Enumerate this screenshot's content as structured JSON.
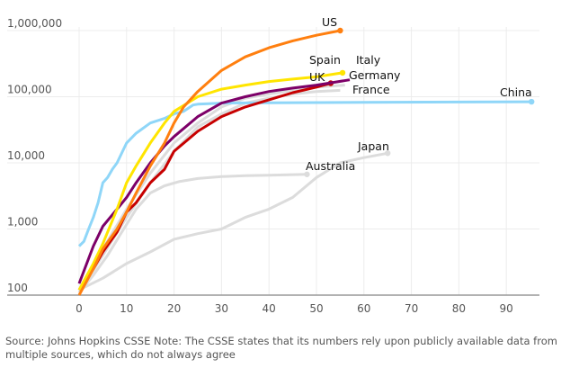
{
  "chart_data": {
    "type": "line",
    "title": "",
    "xlabel": "",
    "ylabel": "",
    "xlim": [
      -3,
      96
    ],
    "ylim": [
      100,
      1000000
    ],
    "y_scale": "log",
    "x_ticks": [
      0,
      10,
      20,
      30,
      40,
      50,
      60,
      70,
      80,
      90
    ],
    "y_ticks": [
      {
        "v": 100,
        "label": "100"
      },
      {
        "v": 1000,
        "label": "1,000"
      },
      {
        "v": 10000,
        "label": "10,000"
      },
      {
        "v": 100000,
        "label": "100,000"
      },
      {
        "v": 1000000,
        "label": "1,000,000"
      }
    ],
    "grid": true,
    "series": [
      {
        "name": "Japan",
        "color": "#dcdcdc",
        "end_dot": true,
        "x": [
          0,
          5,
          10,
          15,
          20,
          25,
          30,
          35,
          40,
          45,
          50,
          55,
          60,
          65
        ],
        "y": [
          120,
          180,
          300,
          450,
          700,
          850,
          1000,
          1500,
          2000,
          3000,
          6000,
          10000,
          12000,
          14000
        ]
      },
      {
        "name": "Australia",
        "color": "#dcdcdc",
        "end_dot": true,
        "x": [
          0,
          3,
          6,
          9,
          12,
          15,
          18,
          21,
          25,
          30,
          35,
          40,
          48
        ],
        "y": [
          110,
          200,
          400,
          900,
          2000,
          3500,
          4500,
          5200,
          5800,
          6200,
          6400,
          6500,
          6700
        ]
      },
      {
        "name": "France",
        "color": "#dcdcdc",
        "end_dot": false,
        "x": [
          0,
          5,
          10,
          15,
          20,
          25,
          30,
          35,
          40,
          45,
          50,
          55
        ],
        "y": [
          110,
          400,
          1500,
          5000,
          15000,
          35000,
          55000,
          80000,
          95000,
          110000,
          120000,
          125000
        ]
      },
      {
        "name": "Germany",
        "color": "#dcdcdc",
        "end_dot": false,
        "x": [
          0,
          5,
          10,
          15,
          20,
          25,
          30,
          35,
          40,
          45,
          50,
          56
        ],
        "y": [
          110,
          500,
          2000,
          7000,
          20000,
          40000,
          70000,
          95000,
          110000,
          125000,
          140000,
          150000
        ]
      },
      {
        "name": "China",
        "color": "#8fd6f8",
        "end_dot": true,
        "x": [
          0,
          1,
          2,
          3,
          4,
          5,
          6,
          7,
          8,
          10,
          12,
          15,
          18,
          20,
          22,
          24,
          25,
          30,
          40,
          60,
          80,
          95.3
        ],
        "y": [
          550,
          650,
          1000,
          1500,
          2500,
          5000,
          6000,
          8000,
          10000,
          20000,
          28000,
          40000,
          47000,
          55000,
          60000,
          75000,
          77000,
          80000,
          81000,
          82000,
          83000,
          84000
        ]
      },
      {
        "name": "UK",
        "color": "#c70000",
        "end_dot": true,
        "x": [
          0,
          3,
          5,
          8,
          10,
          12,
          15,
          18,
          20,
          25,
          30,
          35,
          40,
          45,
          50,
          53
        ],
        "y": [
          120,
          250,
          450,
          900,
          1800,
          2500,
          5000,
          8000,
          15000,
          30000,
          50000,
          70000,
          90000,
          115000,
          140000,
          160000
        ]
      },
      {
        "name": "Italy",
        "color": "#7d0068",
        "end_dot": false,
        "x": [
          0,
          3,
          5,
          8,
          10,
          12,
          15,
          18,
          20,
          25,
          30,
          35,
          40,
          45,
          50,
          57
        ],
        "y": [
          150,
          550,
          1100,
          2000,
          3000,
          5000,
          10000,
          18000,
          25000,
          50000,
          80000,
          100000,
          120000,
          135000,
          150000,
          180000
        ]
      },
      {
        "name": "Spain",
        "color": "#ffe500",
        "end_dot": true,
        "x": [
          0,
          3,
          5,
          8,
          10,
          12,
          15,
          18,
          20,
          25,
          30,
          35,
          40,
          45,
          50,
          55.5
        ],
        "y": [
          120,
          300,
          600,
          2000,
          5000,
          9000,
          20000,
          40000,
          60000,
          100000,
          130000,
          150000,
          170000,
          185000,
          200000,
          230000
        ]
      },
      {
        "name": "US",
        "color": "#ff7f0f",
        "end_dot": true,
        "x": [
          0,
          3,
          5,
          8,
          10,
          12,
          15,
          18,
          20,
          22,
          25,
          30,
          35,
          40,
          45,
          50,
          55
        ],
        "y": [
          100,
          250,
          500,
          1000,
          1800,
          3500,
          9000,
          20000,
          40000,
          70000,
          120000,
          250000,
          400000,
          550000,
          700000,
          850000,
          1000000
        ]
      }
    ],
    "labels": [
      {
        "text": "US"
      },
      {
        "text": "Spain"
      },
      {
        "text": "Italy"
      },
      {
        "text": "UK"
      },
      {
        "text": "Germany"
      },
      {
        "text": "France"
      },
      {
        "text": "China"
      },
      {
        "text": "Japan"
      },
      {
        "text": "Australia"
      }
    ]
  },
  "source": "Source: Johns Hopkins CSSE Note: The CSSE states that its numbers rely upon publicly available data from multiple sources, which do not always agree"
}
